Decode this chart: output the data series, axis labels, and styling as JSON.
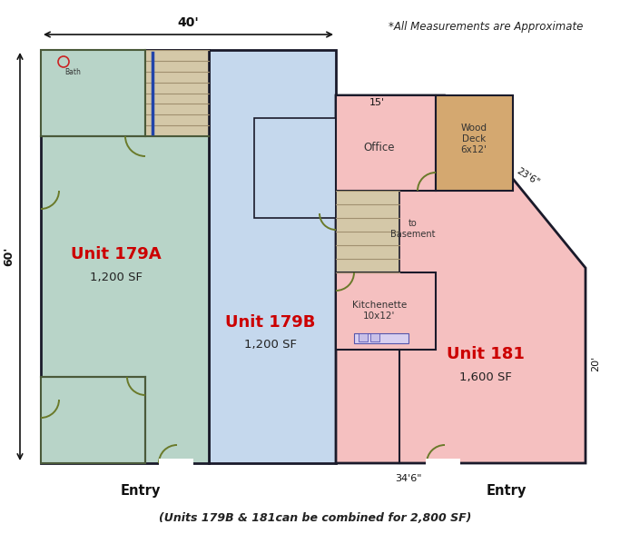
{
  "bg_color": "#ffffff",
  "unit_179a_color": "#b8d4c8",
  "unit_179b_color": "#c5d8ed",
  "unit_181_color": "#f5c0c0",
  "wall_color": "#1a1a2a",
  "inner_wall_color": "#4a5a3a",
  "wood_deck_color": "#d4a870",
  "stair_color": "#d4c8a8",
  "label_color": "#cc0000",
  "sf_color": "#222222",
  "dim_color": "#111111",
  "title_note": "*All Measurements are Approximate",
  "footer_note": "(Units 179B & 181can be combined for 2,800 SF)",
  "dim_40": "40'",
  "dim_60": "60'",
  "dim_15": "15'",
  "dim_23_6": "23'6\"",
  "dim_20": "20'",
  "dim_34_6": "34'6\"",
  "unit_179a_label": "Unit 179A",
  "unit_179a_sf": "1,200 SF",
  "unit_179b_label": "Unit 179B",
  "unit_179b_sf": "1,200 SF",
  "unit_181_label": "Unit 181",
  "unit_181_sf": "1,600 SF",
  "entry1": "Entry",
  "entry2": "Entry",
  "office_label": "Office",
  "kitchenette_label": "Kitchenette\n10x12'",
  "wood_deck_label": "Wood\nDeck\n6x12'",
  "to_basement_label": "to\nBasement",
  "bath_label": "Bath"
}
